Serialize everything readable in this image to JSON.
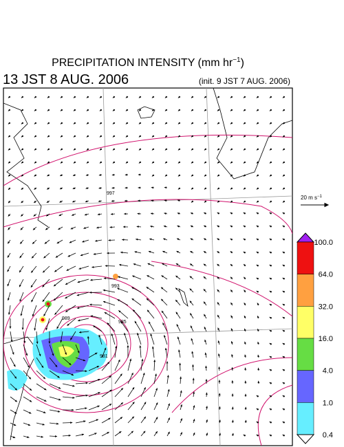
{
  "header": {
    "title": {
      "text": "PRECIPITATION INTENSITY (mm hr",
      "exponent": "−1",
      "close": ")"
    },
    "time": "13 JST 8 AUG. 2006",
    "init": "(init. 9 JST 7 AUG. 2006)"
  },
  "legend": {
    "scale": {
      "text": "20 m s",
      "exponent": "−1"
    }
  },
  "colorbar": {
    "labels": [
      "100.0",
      "64.0",
      "32.0",
      "16.0",
      "4.0",
      "1.0",
      "0.4"
    ],
    "over_color": "#a020f0",
    "under_color": "#ffffff",
    "colors": [
      "#ee1111",
      "#ffa040",
      "#ffff66",
      "#66dd44",
      "#6666ff",
      "#66eeff"
    ]
  },
  "map": {
    "contour_labels": [
      "997",
      "993",
      "989",
      "985",
      "981"
    ]
  }
}
